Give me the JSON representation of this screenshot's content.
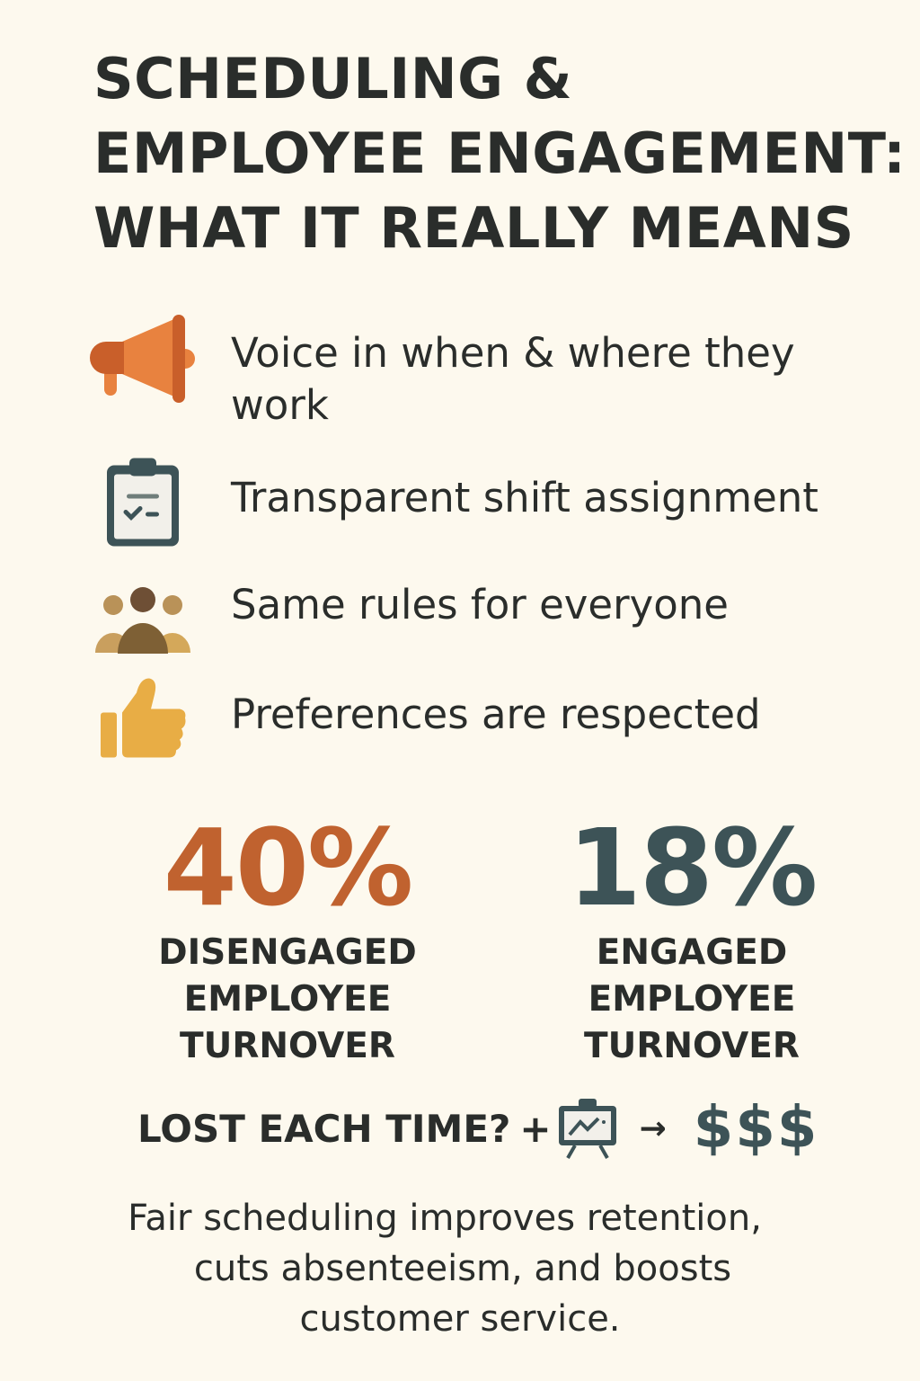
{
  "title": {
    "lines": [
      "SCHEDULING &",
      "EMPLOYEE ENGAGEMENT:",
      "WHAT IT REALLY MEANS"
    ]
  },
  "items": [
    {
      "icon": "megaphone-icon",
      "text": "Voice in when & where they work"
    },
    {
      "icon": "clipboard-check-icon",
      "text": "Transparent shift assignment"
    },
    {
      "icon": "group-icon",
      "text": "Same rules for everyone"
    },
    {
      "icon": "thumbs-up-icon",
      "text": "Preferences are respected"
    }
  ],
  "stats": [
    {
      "value": "40%",
      "label_lines": [
        "DISENGAGED",
        "EMPLOYEE",
        "TURNOVER"
      ],
      "color": "#c0622f"
    },
    {
      "value": "18%",
      "label_lines": [
        "ENGAGED",
        "EMPLOYEE",
        "TURNOVER"
      ],
      "color": "#3d5357"
    }
  ],
  "cost": {
    "text": "LOST EACH TIME?",
    "plus": "+",
    "icon": "training-board-icon",
    "arrow": "→",
    "money": "$$$"
  },
  "footer": {
    "lines": [
      "Fair scheduling improves retention,",
      "cuts absenteeism, and boosts",
      "customer service."
    ]
  },
  "colors": {
    "background": "#fdf9ee",
    "text": "#2a2d2b",
    "orange": "#e8823f",
    "teal": "#3d5357",
    "gold": "#e8ad45"
  }
}
